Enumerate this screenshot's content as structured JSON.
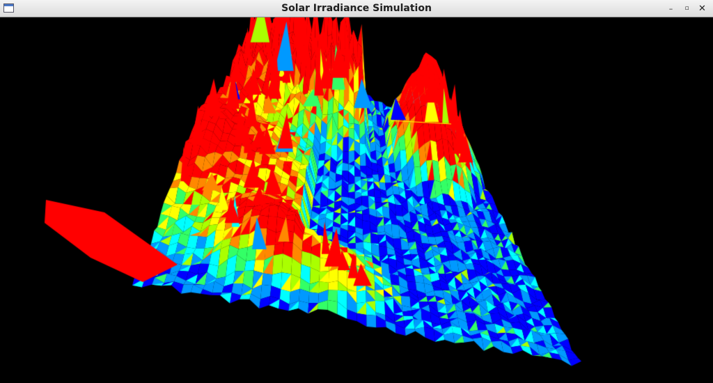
{
  "window": {
    "title": "Solar Irradiance Simulation",
    "icons": {
      "app": "window-icon",
      "minimize": "minimize-icon",
      "maximize": "maximize-icon",
      "close": "close-icon"
    },
    "glyphs": {
      "minimize": "–",
      "maximize": "▫",
      "close": "✕"
    }
  },
  "viewport": {
    "background": "#000000",
    "colormap": [
      "#0000ff",
      "#0099ff",
      "#00ffff",
      "#33ff66",
      "#aaff00",
      "#ffff00",
      "#ff8800",
      "#ff0000"
    ],
    "edge_color": "#ffff00"
  }
}
